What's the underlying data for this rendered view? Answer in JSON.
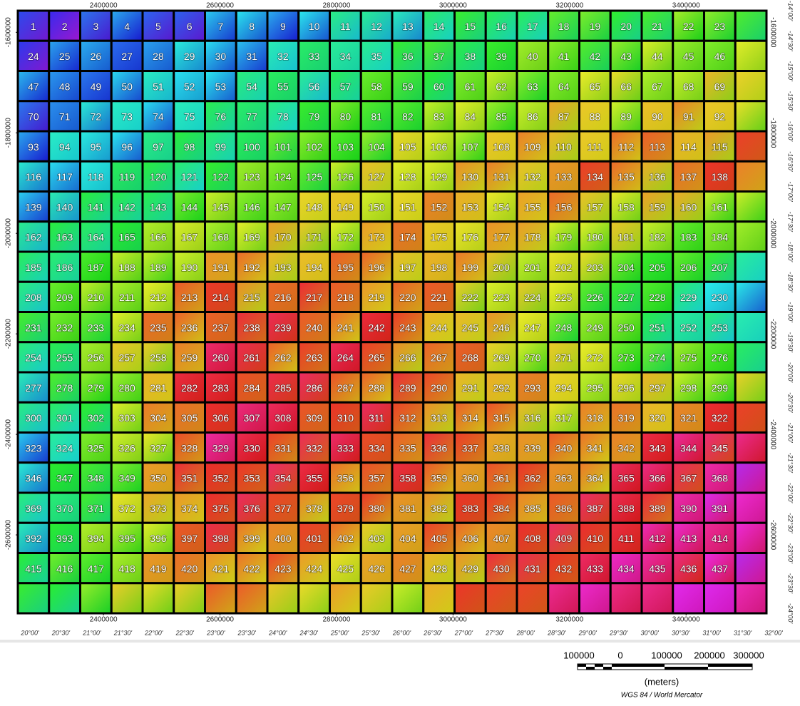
{
  "map": {
    "x_ticks": [
      2400000,
      2600000,
      2800000,
      3000000,
      3200000,
      3400000
    ],
    "y_ticks": [
      -1600000,
      -1800000,
      -2000000,
      -2200000,
      -2400000,
      -2600000
    ],
    "xlim": [
      2253000,
      3538000
    ],
    "ylim": [
      -1557000,
      -2756000
    ],
    "latitudes": [
      "-14°00'",
      "-14°30'",
      "-15°00'",
      "-15°30'",
      "-16°00'",
      "-16°30'",
      "-17°00'",
      "-17°30'",
      "-18°00'",
      "-18°30'",
      "-19°00'",
      "-19°30'",
      "-20°00'",
      "-20°30'",
      "-21°00'",
      "-21°30'",
      "-22°00'",
      "-22°30'",
      "-23°00'",
      "-23°30'",
      "-24°00'"
    ],
    "longitudes": [
      "20°00'",
      "20°30'",
      "21°00'",
      "21°30'",
      "22°00'",
      "22°30'",
      "23°00'",
      "23°30'",
      "24°00'",
      "24°30'",
      "25°00'",
      "25°30'",
      "26°00'",
      "26°30'",
      "27°00'",
      "27°30'",
      "28°00'",
      "28°30'",
      "29°00'",
      "29°30'",
      "30°00'",
      "30°30'",
      "31°00'",
      "31°30'",
      "32°00'"
    ],
    "tiles": [
      [
        1,
        2,
        3,
        4,
        5,
        6,
        7,
        8,
        9,
        10,
        11,
        12,
        13,
        14,
        15,
        16,
        17,
        18,
        19,
        20,
        21,
        22,
        23
      ],
      [
        24,
        25,
        26,
        27,
        28,
        29,
        30,
        31,
        32,
        33,
        34,
        35,
        36,
        37,
        38,
        39,
        40,
        41,
        42,
        43,
        44,
        45,
        46
      ],
      [
        47,
        48,
        49,
        50,
        51,
        52,
        53,
        54,
        55,
        56,
        57,
        58,
        59,
        60,
        61,
        62,
        63,
        64,
        65,
        66,
        67,
        68,
        69
      ],
      [
        70,
        71,
        72,
        73,
        74,
        75,
        76,
        77,
        78,
        79,
        80,
        81,
        82,
        83,
        84,
        85,
        86,
        87,
        88,
        89,
        90,
        91,
        92
      ],
      [
        93,
        94,
        95,
        96,
        97,
        98,
        99,
        100,
        101,
        102,
        103,
        104,
        105,
        106,
        107,
        108,
        109,
        110,
        111,
        112,
        113,
        114,
        115
      ],
      [
        116,
        117,
        118,
        119,
        120,
        121,
        122,
        123,
        124,
        125,
        126,
        127,
        128,
        129,
        130,
        131,
        132,
        133,
        134,
        135,
        136,
        137,
        138
      ],
      [
        139,
        140,
        141,
        142,
        143,
        144,
        145,
        146,
        147,
        148,
        149,
        150,
        151,
        152,
        153,
        154,
        155,
        156,
        157,
        158,
        159,
        160,
        161
      ],
      [
        162,
        163,
        164,
        165,
        166,
        167,
        168,
        169,
        170,
        171,
        172,
        173,
        174,
        175,
        176,
        177,
        178,
        179,
        180,
        181,
        182,
        183,
        184
      ],
      [
        185,
        186,
        187,
        188,
        189,
        190,
        191,
        192,
        193,
        194,
        195,
        196,
        197,
        198,
        199,
        200,
        201,
        202,
        203,
        204,
        205,
        206,
        207
      ],
      [
        208,
        209,
        210,
        211,
        212,
        213,
        214,
        215,
        216,
        217,
        218,
        219,
        220,
        221,
        222,
        223,
        224,
        225,
        226,
        227,
        228,
        229,
        230
      ],
      [
        231,
        232,
        233,
        234,
        235,
        236,
        237,
        238,
        239,
        240,
        241,
        242,
        243,
        244,
        245,
        246,
        247,
        248,
        249,
        250,
        251,
        252,
        253
      ],
      [
        254,
        255,
        256,
        257,
        258,
        259,
        260,
        261,
        262,
        263,
        264,
        265,
        266,
        267,
        268,
        269,
        270,
        271,
        272,
        273,
        274,
        275,
        276
      ],
      [
        277,
        278,
        279,
        280,
        281,
        282,
        283,
        284,
        285,
        286,
        287,
        288,
        289,
        290,
        291,
        292,
        293,
        294,
        295,
        296,
        297,
        298,
        299
      ],
      [
        300,
        301,
        302,
        303,
        304,
        305,
        306,
        307,
        308,
        309,
        310,
        311,
        312,
        313,
        314,
        315,
        316,
        317,
        318,
        319,
        320,
        321,
        322
      ],
      [
        323,
        324,
        325,
        326,
        327,
        328,
        329,
        330,
        331,
        332,
        333,
        334,
        335,
        336,
        337,
        338,
        339,
        340,
        341,
        342,
        343,
        344,
        345
      ],
      [
        346,
        347,
        348,
        349,
        350,
        351,
        352,
        353,
        354,
        355,
        356,
        357,
        358,
        359,
        360,
        361,
        362,
        363,
        364,
        365,
        366,
        367,
        368
      ],
      [
        369,
        370,
        371,
        372,
        373,
        374,
        375,
        376,
        377,
        378,
        379,
        380,
        381,
        382,
        383,
        384,
        385,
        386,
        387,
        388,
        389,
        390,
        391
      ],
      [
        392,
        393,
        394,
        395,
        396,
        397,
        398,
        399,
        400,
        401,
        402,
        403,
        404,
        405,
        406,
        407,
        408,
        409,
        410,
        411,
        412,
        413,
        414
      ],
      [
        415,
        416,
        417,
        418,
        419,
        420,
        421,
        422,
        423,
        424,
        425,
        426,
        427,
        428,
        429,
        430,
        431,
        432,
        433,
        434,
        435,
        436,
        437
      ]
    ],
    "scale_labels": [
      "100000",
      "0",
      "100000",
      "200000",
      "300000"
    ],
    "scale_unit": "(meters)",
    "projection": "WGS 84 / World Mercator"
  }
}
